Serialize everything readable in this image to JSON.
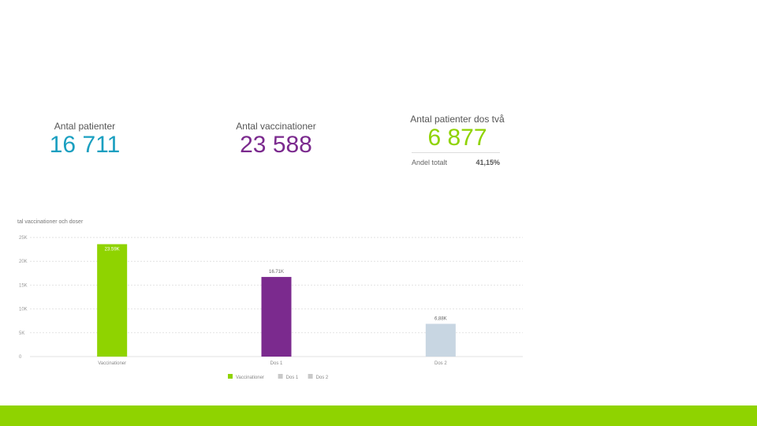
{
  "kpis": [
    {
      "label": "Antal patienter",
      "value": "16 711",
      "color": "#1a9fc0"
    },
    {
      "label": "Antal vaccinationer",
      "value": "23 588",
      "color": "#7b2a8e"
    },
    {
      "label": "Antal patienter dos två",
      "value": "6 877",
      "color": "#8fd300"
    }
  ],
  "share": {
    "label": "Andel totalt",
    "value": "41,15%"
  },
  "footer_color": "#8fd300",
  "chart_data": {
    "type": "bar",
    "title": "tal vaccinationer och doser",
    "categories": [
      "Vaccinationer",
      "Dos 1",
      "Dos 2"
    ],
    "values": [
      23588,
      16711,
      6877
    ],
    "data_labels": [
      "23.59K",
      "16.71K",
      "6,88K"
    ],
    "colors": [
      "#8fd300",
      "#7b2a8e",
      "#c8d6e2"
    ],
    "y_ticks": [
      0,
      5000,
      10000,
      15000,
      20000,
      25000
    ],
    "y_tick_labels": [
      "0",
      "5K",
      "10K",
      "15K",
      "20K",
      "25K"
    ],
    "ylim": [
      0,
      25000
    ],
    "grid": true,
    "legend_position": "bottom",
    "legend": [
      {
        "name": "Vaccinationer",
        "color": "#8fd300"
      },
      {
        "name": "Dos 1",
        "color": "#c9c9c9"
      },
      {
        "name": "Dos 2",
        "color": "#c9c9c9"
      }
    ]
  }
}
